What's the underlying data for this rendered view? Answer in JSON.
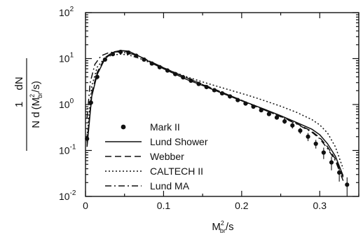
{
  "chart_data": {
    "type": "line",
    "xlabel": {
      "base": "M",
      "sup": "2",
      "sub": "br",
      "rest": "/s"
    },
    "ylabel": {
      "numerator": {
        "left": "1",
        "right": "dN"
      },
      "denominator": {
        "lead": "N d",
        "open": "(",
        "base": "M",
        "sup": "2",
        "sub": "br",
        "rest": "/s",
        "close": ")"
      }
    },
    "xlim": [
      0,
      0.35
    ],
    "ylim": [
      0.01,
      100
    ],
    "yscale": "log",
    "grid": false,
    "legend_position": "lower-left",
    "x_ticks": [
      {
        "value": 0,
        "label": "0"
      },
      {
        "value": 0.1,
        "label": "0.1"
      },
      {
        "value": 0.2,
        "label": "0.2"
      },
      {
        "value": 0.3,
        "label": "0.3"
      }
    ],
    "y_ticks": [
      {
        "value": 100,
        "base": "10",
        "exp": "2"
      },
      {
        "value": 10,
        "base": "10",
        "exp": "1"
      },
      {
        "value": 1,
        "base": "10",
        "exp": "0"
      },
      {
        "value": 0.1,
        "base": "10",
        "exp": "-1"
      },
      {
        "value": 0.01,
        "base": "10",
        "exp": "-2"
      }
    ],
    "series": [
      {
        "name": "Mark II",
        "style": "points",
        "x": [
          0.002,
          0.007,
          0.015,
          0.025,
          0.035,
          0.045,
          0.055,
          0.065,
          0.075,
          0.085,
          0.095,
          0.105,
          0.115,
          0.125,
          0.135,
          0.145,
          0.155,
          0.165,
          0.175,
          0.185,
          0.195,
          0.205,
          0.215,
          0.225,
          0.235,
          0.245,
          0.255,
          0.265,
          0.275,
          0.285,
          0.295,
          0.305,
          0.315,
          0.325,
          0.335
        ],
        "y": [
          0.18,
          1.1,
          4.0,
          9.5,
          12.5,
          14.0,
          13.5,
          11.5,
          9.5,
          7.8,
          6.5,
          5.5,
          4.6,
          3.9,
          3.3,
          2.8,
          2.4,
          2.05,
          1.75,
          1.5,
          1.25,
          1.05,
          0.9,
          0.75,
          0.62,
          0.52,
          0.43,
          0.35,
          0.27,
          0.2,
          0.14,
          0.09,
          0.055,
          0.033,
          0.018
        ],
        "yerr": [
          0.05,
          0.2,
          0.5,
          0.8,
          0.9,
          1.0,
          1.0,
          0.8,
          0.7,
          0.5,
          0.4,
          0.35,
          0.3,
          0.25,
          0.2,
          0.18,
          0.15,
          0.13,
          0.11,
          0.1,
          0.09,
          0.08,
          0.07,
          0.06,
          0.06,
          0.05,
          0.05,
          0.05,
          0.04,
          0.04,
          0.03,
          0.025,
          0.018,
          0.012,
          0.008
        ]
      },
      {
        "name": "Lund Shower",
        "style": "solid",
        "x": [
          0.002,
          0.008,
          0.015,
          0.025,
          0.035,
          0.045,
          0.055,
          0.07,
          0.09,
          0.11,
          0.13,
          0.15,
          0.17,
          0.19,
          0.21,
          0.23,
          0.25,
          0.27,
          0.29,
          0.3,
          0.31,
          0.32,
          0.33
        ],
        "y": [
          0.12,
          1.5,
          4.5,
          10.0,
          13.5,
          15.0,
          14.5,
          11.0,
          7.2,
          5.0,
          3.5,
          2.6,
          1.9,
          1.4,
          1.05,
          0.78,
          0.57,
          0.41,
          0.29,
          0.22,
          0.14,
          0.075,
          0.028
        ]
      },
      {
        "name": "Webber",
        "style": "dashed",
        "x": [
          0.002,
          0.008,
          0.015,
          0.025,
          0.035,
          0.045,
          0.055,
          0.07,
          0.09,
          0.11,
          0.13,
          0.15,
          0.17,
          0.19,
          0.21,
          0.23,
          0.25,
          0.27,
          0.29,
          0.3,
          0.31,
          0.32,
          0.33
        ],
        "y": [
          0.15,
          1.8,
          5.0,
          10.5,
          13.8,
          15.0,
          14.0,
          11.0,
          7.5,
          5.3,
          3.8,
          2.75,
          2.0,
          1.45,
          1.05,
          0.76,
          0.55,
          0.39,
          0.26,
          0.19,
          0.12,
          0.065,
          0.026
        ]
      },
      {
        "name": "CALTECH II",
        "style": "dotted",
        "x": [
          0.002,
          0.008,
          0.015,
          0.025,
          0.035,
          0.045,
          0.055,
          0.07,
          0.09,
          0.11,
          0.13,
          0.15,
          0.17,
          0.19,
          0.21,
          0.23,
          0.25,
          0.27,
          0.29,
          0.3,
          0.31,
          0.32,
          0.33
        ],
        "y": [
          0.2,
          2.5,
          6.5,
          10.5,
          12.0,
          12.5,
          12.0,
          10.0,
          7.2,
          5.3,
          4.0,
          3.1,
          2.45,
          1.95,
          1.55,
          1.2,
          0.92,
          0.68,
          0.47,
          0.36,
          0.24,
          0.12,
          0.04
        ]
      },
      {
        "name": "Lund MA",
        "style": "dashdot",
        "x": [
          0.002,
          0.006,
          0.012,
          0.02,
          0.03,
          0.04,
          0.05,
          0.06,
          0.07,
          0.09,
          0.11,
          0.13,
          0.15,
          0.17,
          0.19,
          0.21,
          0.23,
          0.25,
          0.27,
          0.29,
          0.3,
          0.31,
          0.32,
          0.33
        ],
        "y": [
          0.5,
          3.0,
          7.5,
          11.5,
          13.5,
          14.0,
          13.5,
          12.5,
          11.0,
          7.6,
          5.3,
          3.8,
          2.7,
          1.95,
          1.42,
          1.03,
          0.75,
          0.54,
          0.38,
          0.25,
          0.18,
          0.11,
          0.06,
          0.022
        ]
      }
    ]
  }
}
